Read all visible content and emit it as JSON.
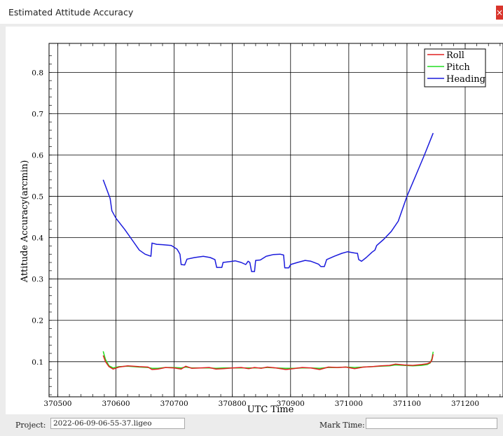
{
  "window": {
    "title": "Estimated Attitude Accuracy",
    "close_label": "×"
  },
  "footer": {
    "project_label": "Project:",
    "project_value": "2022-06-09-06-55-37.ligeo",
    "mark_time_label": "Mark Time:",
    "mark_time_value": ""
  },
  "colors": {
    "roll": "#e02020",
    "pitch": "#22dd22",
    "heading": "#1a1adc"
  },
  "chart_data": {
    "type": "line",
    "xlabel": "UTC Time",
    "ylabel": "Attitude Accuracy(arcmin)",
    "xlim": [
      370485,
      371265
    ],
    "ylim": [
      0.015,
      0.87
    ],
    "xticks": [
      370500,
      370600,
      370700,
      370800,
      370900,
      371000,
      371100,
      371200
    ],
    "yticks": [
      0.1,
      0.2,
      0.3,
      0.4,
      0.5,
      0.6,
      0.7,
      0.8
    ],
    "grid": true,
    "legend_position": "top-right",
    "series": [
      {
        "name": "Roll",
        "color": "#e02020",
        "points": [
          [
            370578,
            0.115
          ],
          [
            370582,
            0.1
          ],
          [
            370588,
            0.088
          ],
          [
            370595,
            0.082
          ],
          [
            370605,
            0.087
          ],
          [
            370620,
            0.09
          ],
          [
            370640,
            0.088
          ],
          [
            370655,
            0.087
          ],
          [
            370662,
            0.081
          ],
          [
            370672,
            0.082
          ],
          [
            370685,
            0.086
          ],
          [
            370700,
            0.085
          ],
          [
            370712,
            0.082
          ],
          [
            370720,
            0.089
          ],
          [
            370730,
            0.084
          ],
          [
            370745,
            0.085
          ],
          [
            370760,
            0.086
          ],
          [
            370772,
            0.082
          ],
          [
            370785,
            0.083
          ],
          [
            370800,
            0.085
          ],
          [
            370815,
            0.086
          ],
          [
            370828,
            0.083
          ],
          [
            370838,
            0.086
          ],
          [
            370850,
            0.084
          ],
          [
            370860,
            0.087
          ],
          [
            370875,
            0.085
          ],
          [
            370892,
            0.081
          ],
          [
            370905,
            0.083
          ],
          [
            370920,
            0.086
          ],
          [
            370935,
            0.085
          ],
          [
            370950,
            0.081
          ],
          [
            370965,
            0.087
          ],
          [
            370980,
            0.086
          ],
          [
            370995,
            0.087
          ],
          [
            371010,
            0.083
          ],
          [
            371025,
            0.087
          ],
          [
            371040,
            0.088
          ],
          [
            371055,
            0.09
          ],
          [
            371070,
            0.091
          ],
          [
            371080,
            0.094
          ],
          [
            371095,
            0.092
          ],
          [
            371110,
            0.091
          ],
          [
            371125,
            0.093
          ],
          [
            371135,
            0.095
          ],
          [
            371140,
            0.098
          ],
          [
            371143,
            0.104
          ],
          [
            371145,
            0.118
          ]
        ]
      },
      {
        "name": "Pitch",
        "color": "#22dd22",
        "points": [
          [
            370578,
            0.125
          ],
          [
            370582,
            0.105
          ],
          [
            370588,
            0.09
          ],
          [
            370595,
            0.085
          ],
          [
            370605,
            0.088
          ],
          [
            370620,
            0.089
          ],
          [
            370640,
            0.087
          ],
          [
            370655,
            0.086
          ],
          [
            370662,
            0.084
          ],
          [
            370672,
            0.084
          ],
          [
            370685,
            0.086
          ],
          [
            370700,
            0.086
          ],
          [
            370712,
            0.085
          ],
          [
            370720,
            0.087
          ],
          [
            370730,
            0.085
          ],
          [
            370745,
            0.085
          ],
          [
            370760,
            0.085
          ],
          [
            370772,
            0.084
          ],
          [
            370785,
            0.085
          ],
          [
            370800,
            0.085
          ],
          [
            370815,
            0.085
          ],
          [
            370828,
            0.085
          ],
          [
            370838,
            0.085
          ],
          [
            370850,
            0.085
          ],
          [
            370860,
            0.086
          ],
          [
            370875,
            0.085
          ],
          [
            370892,
            0.084
          ],
          [
            370905,
            0.084
          ],
          [
            370920,
            0.085
          ],
          [
            370935,
            0.085
          ],
          [
            370950,
            0.084
          ],
          [
            370965,
            0.086
          ],
          [
            370980,
            0.086
          ],
          [
            370995,
            0.087
          ],
          [
            371010,
            0.086
          ],
          [
            371025,
            0.087
          ],
          [
            371040,
            0.088
          ],
          [
            371055,
            0.089
          ],
          [
            371070,
            0.09
          ],
          [
            371080,
            0.092
          ],
          [
            371095,
            0.091
          ],
          [
            371110,
            0.09
          ],
          [
            371125,
            0.091
          ],
          [
            371135,
            0.093
          ],
          [
            371140,
            0.097
          ],
          [
            371143,
            0.108
          ],
          [
            371145,
            0.124
          ]
        ]
      },
      {
        "name": "Heading",
        "color": "#1a1adc",
        "points": [
          [
            370578,
            0.54
          ],
          [
            370590,
            0.495
          ],
          [
            370593,
            0.465
          ],
          [
            370600,
            0.447
          ],
          [
            370615,
            0.42
          ],
          [
            370630,
            0.39
          ],
          [
            370640,
            0.37
          ],
          [
            370650,
            0.36
          ],
          [
            370660,
            0.355
          ],
          [
            370662,
            0.387
          ],
          [
            370670,
            0.384
          ],
          [
            370680,
            0.383
          ],
          [
            370695,
            0.381
          ],
          [
            370705,
            0.372
          ],
          [
            370710,
            0.36
          ],
          [
            370712,
            0.335
          ],
          [
            370718,
            0.334
          ],
          [
            370722,
            0.348
          ],
          [
            370735,
            0.352
          ],
          [
            370750,
            0.355
          ],
          [
            370762,
            0.352
          ],
          [
            370770,
            0.347
          ],
          [
            370773,
            0.328
          ],
          [
            370782,
            0.328
          ],
          [
            370784,
            0.34
          ],
          [
            370795,
            0.342
          ],
          [
            370805,
            0.344
          ],
          [
            370815,
            0.34
          ],
          [
            370823,
            0.335
          ],
          [
            370827,
            0.343
          ],
          [
            370830,
            0.34
          ],
          [
            370833,
            0.318
          ],
          [
            370838,
            0.318
          ],
          [
            370840,
            0.345
          ],
          [
            370848,
            0.346
          ],
          [
            370858,
            0.355
          ],
          [
            370870,
            0.359
          ],
          [
            370882,
            0.36
          ],
          [
            370888,
            0.358
          ],
          [
            370890,
            0.327
          ],
          [
            370897,
            0.327
          ],
          [
            370900,
            0.335
          ],
          [
            370912,
            0.34
          ],
          [
            370925,
            0.345
          ],
          [
            370935,
            0.343
          ],
          [
            370948,
            0.336
          ],
          [
            370952,
            0.33
          ],
          [
            370958,
            0.33
          ],
          [
            370962,
            0.347
          ],
          [
            370975,
            0.355
          ],
          [
            370988,
            0.362
          ],
          [
            370998,
            0.366
          ],
          [
            371010,
            0.363
          ],
          [
            371015,
            0.362
          ],
          [
            371017,
            0.347
          ],
          [
            371022,
            0.343
          ],
          [
            371030,
            0.352
          ],
          [
            371040,
            0.365
          ],
          [
            371045,
            0.37
          ],
          [
            371048,
            0.381
          ],
          [
            371060,
            0.396
          ],
          [
            371073,
            0.415
          ],
          [
            371085,
            0.44
          ],
          [
            371100,
            0.5
          ],
          [
            371115,
            0.55
          ],
          [
            371130,
            0.6
          ],
          [
            371145,
            0.653
          ]
        ]
      }
    ]
  }
}
